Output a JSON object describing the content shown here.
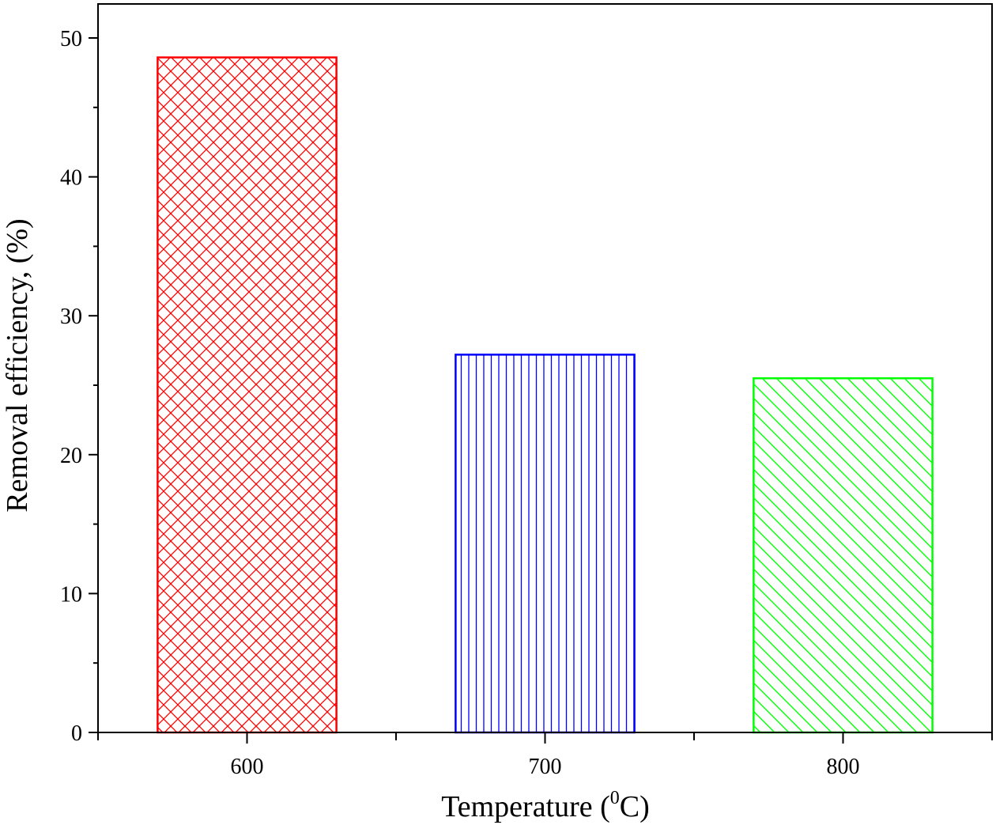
{
  "chart_data": {
    "type": "bar",
    "categories": [
      "600",
      "700",
      "800"
    ],
    "values": [
      48.6,
      27.2,
      25.5
    ],
    "xlabel": "Temperature (",
    "xlabel_sup": "0",
    "xlabel_suffix": "C)",
    "ylabel": "Removal efficiency, (%)",
    "ylim": [
      0,
      50
    ],
    "yticks": [
      "0",
      "10",
      "20",
      "30",
      "40",
      "50"
    ],
    "grid": false,
    "bars": [
      {
        "color": "#ff0000",
        "pattern": "crosshatch"
      },
      {
        "color": "#0000ff",
        "pattern": "vertical"
      },
      {
        "color": "#00ff00",
        "pattern": "diagonal"
      }
    ]
  }
}
